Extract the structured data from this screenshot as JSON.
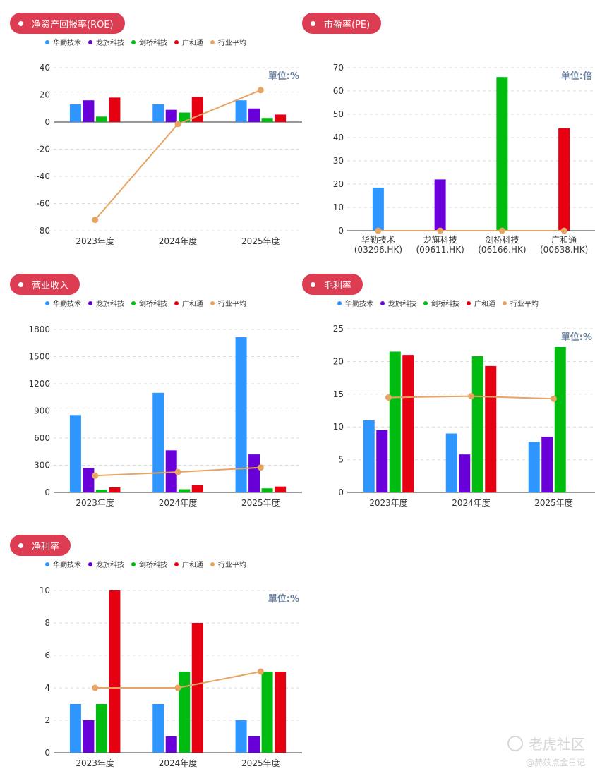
{
  "series_colors": [
    "#2f95ff",
    "#6a00d9",
    "#00bb10",
    "#e60012",
    "#e8a463"
  ],
  "legend": [
    "华勤技术",
    "龙旗科技",
    "剑桥科技",
    "广和通",
    "行业平均"
  ],
  "panels": [
    {
      "key": "roe",
      "title": "净资产回报率(ROE)",
      "unit": "單位:%",
      "chart_data": {
        "type": "bar",
        "title": "净资产回报率(ROE)",
        "categories": [
          "2023年度",
          "2024年度",
          "2025年度"
        ],
        "series": [
          {
            "name": "华勤技术",
            "values": [
              13,
              13,
              16
            ]
          },
          {
            "name": "龙旗科技",
            "values": [
              16,
              9,
              10
            ]
          },
          {
            "name": "剑桥科技",
            "values": [
              4,
              7,
              3
            ]
          },
          {
            "name": "广和通",
            "values": [
              18,
              18.5,
              5.5
            ]
          },
          {
            "name": "行业平均",
            "type": "line",
            "values": [
              -72,
              -1.5,
              23.5
            ]
          }
        ],
        "ylim": [
          -80,
          40
        ],
        "yticks": [
          40,
          20,
          0,
          -20,
          -40,
          -60,
          -80
        ],
        "grid": true,
        "legend_position": "top-left"
      }
    },
    {
      "key": "pe",
      "title": "市盈率(PE)",
      "unit": "单位:倍",
      "chart_data": {
        "type": "bar",
        "title": "市盈率(PE)",
        "categories": [
          "华勤技术\n(03296.HK)",
          "龙旗科技\n(09611.HK)",
          "剑桥科技\n(06166.HK)",
          "广和通\n(00638.HK)"
        ],
        "single_bar_colors": [
          "#2f95ff",
          "#6a00d9",
          "#00bb10",
          "#e60012"
        ],
        "values": [
          18.5,
          22,
          66,
          44
        ],
        "line": {
          "values": [
            0,
            0,
            0,
            0
          ]
        },
        "ylim": [
          0,
          70
        ],
        "yticks": [
          70,
          60,
          50,
          40,
          30,
          20,
          10,
          0
        ],
        "grid": true
      }
    },
    {
      "key": "revenue",
      "title": "营业收入",
      "unit": "",
      "chart_data": {
        "type": "bar",
        "title": "营业收入",
        "categories": [
          "2023年度",
          "2024年度",
          "2025年度"
        ],
        "series": [
          {
            "name": "华勤技术",
            "values": [
              855,
              1100,
              1715
            ]
          },
          {
            "name": "龙旗科技",
            "values": [
              270,
              465,
              420
            ]
          },
          {
            "name": "剑桥科技",
            "values": [
              30,
              35,
              45
            ]
          },
          {
            "name": "广和通",
            "values": [
              55,
              80,
              65
            ]
          },
          {
            "name": "行业平均",
            "type": "line",
            "values": [
              185,
              225,
              275
            ]
          }
        ],
        "ylim": [
          0,
          1800
        ],
        "yticks": [
          1800,
          1500,
          1200,
          900,
          600,
          300,
          0
        ],
        "grid": true,
        "legend_position": "top-left"
      }
    },
    {
      "key": "gross",
      "title": "毛利率",
      "unit": "單位:%",
      "chart_data": {
        "type": "bar",
        "title": "毛利率",
        "categories": [
          "2023年度",
          "2024年度",
          "2025年度"
        ],
        "series": [
          {
            "name": "华勤技术",
            "values": [
              11,
              9,
              7.7
            ]
          },
          {
            "name": "龙旗科技",
            "values": [
              9.5,
              5.8,
              8.5
            ]
          },
          {
            "name": "剑桥科技",
            "values": [
              21.5,
              20.8,
              22.2
            ]
          },
          {
            "name": "广和通",
            "values": [
              21,
              19.3,
              null
            ]
          },
          {
            "name": "行业平均",
            "type": "line",
            "values": [
              14.5,
              14.7,
              14.3
            ]
          }
        ],
        "ylim": [
          0,
          25
        ],
        "yticks": [
          25,
          20,
          15,
          10,
          5,
          0
        ],
        "grid": true,
        "legend_position": "top-left"
      }
    },
    {
      "key": "net",
      "title": "净利率",
      "unit": "單位:%",
      "chart_data": {
        "type": "bar",
        "title": "净利率",
        "categories": [
          "2023年度",
          "2024年度",
          "2025年度"
        ],
        "series": [
          {
            "name": "华勤技术",
            "values": [
              3,
              3,
              2
            ]
          },
          {
            "name": "龙旗科技",
            "values": [
              2,
              1,
              1
            ]
          },
          {
            "name": "剑桥科技",
            "values": [
              3,
              5,
              5
            ]
          },
          {
            "name": "广和通",
            "values": [
              10,
              8,
              5
            ]
          },
          {
            "name": "行业平均",
            "type": "line",
            "values": [
              4,
              4,
              5
            ]
          }
        ],
        "ylim": [
          0,
          10
        ],
        "yticks": [
          10,
          8,
          6,
          4,
          2,
          0
        ],
        "grid": true,
        "legend_position": "top-left"
      }
    }
  ],
  "watermark": {
    "brand": "老虎社区",
    "handle": "@赫兹点金日记"
  }
}
